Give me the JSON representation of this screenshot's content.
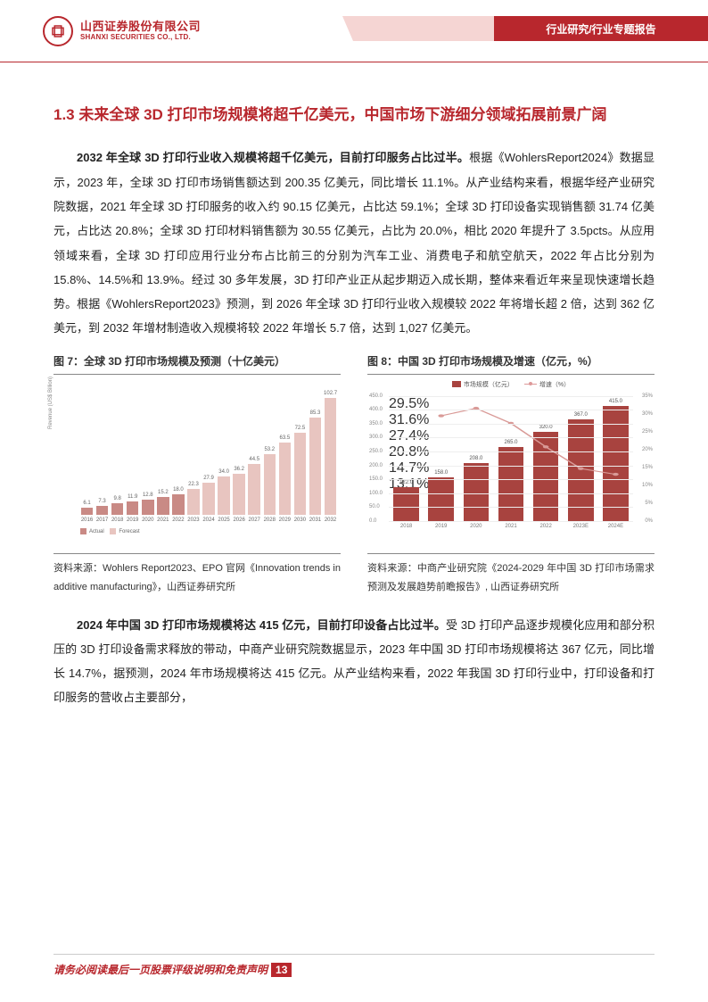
{
  "header": {
    "company_cn": "山西证券股份有限公司",
    "company_en": "SHANXI SECURITIES CO., LTD.",
    "ribbon": "行业研究/行业专题报告"
  },
  "section": {
    "title": "1.3 未来全球 3D 打印市场规模将超千亿美元，中国市场下游细分领域拓展前景广阔"
  },
  "para1": {
    "lead": "2032 年全球 3D 打印行业收入规模将超千亿美元，目前打印服务占比过半。",
    "rest": "根据《WohlersReport2024》数据显示，2023 年，全球 3D 打印市场销售额达到 200.35 亿美元，同比增长 11.1%。从产业结构来看，根据华经产业研究院数据，2021 年全球 3D 打印服务的收入约 90.15 亿美元，占比达 59.1%；全球 3D 打印设备实现销售额 31.74 亿美元，占比达 20.8%；全球 3D 打印材料销售额为 30.55 亿美元，占比为 20.0%，相比 2020 年提升了 3.5pcts。从应用领域来看，全球 3D 打印应用行业分布占比前三的分别为汽车工业、消费电子和航空航天，2022 年占比分别为 15.8%、14.5%和 13.9%。经过 30 多年发展，3D 打印产业正从起步期迈入成长期，整体来看近年来呈现快速增长趋势。根据《WohlersReport2023》预测，到 2026 年全球 3D 打印行业收入规模较 2022 年将增长超 2 倍，达到 362 亿美元，到 2032 年增材制造收入规模将较 2022 年增长 5.7 倍，达到 1,027 亿美元。"
  },
  "chart7": {
    "title": "图 7：全球 3D 打印市场规模及预测（十亿美元）",
    "ylabel": "Revenue (US$ Billion)",
    "ymax": 110,
    "actual_color": "#c98a85",
    "forecast_color": "#e8c5c0",
    "legend_actual": "Actual",
    "legend_forecast": "Forecast",
    "bars": [
      {
        "x": "2016",
        "v": 6.1,
        "forecast": false
      },
      {
        "x": "2017",
        "v": 7.3,
        "forecast": false
      },
      {
        "x": "2018",
        "v": 9.8,
        "forecast": false
      },
      {
        "x": "2019",
        "v": 11.9,
        "forecast": false
      },
      {
        "x": "2020",
        "v": 12.8,
        "forecast": false
      },
      {
        "x": "2021",
        "v": 15.2,
        "forecast": false
      },
      {
        "x": "2022",
        "v": 18.0,
        "forecast": false
      },
      {
        "x": "2023",
        "v": 22.3,
        "forecast": true
      },
      {
        "x": "2024",
        "v": 27.9,
        "forecast": true
      },
      {
        "x": "2025",
        "v": 34.0,
        "forecast": true
      },
      {
        "x": "2026",
        "v": 36.2,
        "forecast": true
      },
      {
        "x": "2027",
        "v": 44.5,
        "forecast": true
      },
      {
        "x": "2028",
        "v": 53.2,
        "forecast": true
      },
      {
        "x": "2029",
        "v": 63.5,
        "forecast": true
      },
      {
        "x": "2030",
        "v": 72.5,
        "forecast": true
      },
      {
        "x": "2031",
        "v": 85.3,
        "forecast": true
      },
      {
        "x": "2032",
        "v": 102.7,
        "forecast": true
      }
    ],
    "source": "资料来源：Wohlers Report2023、EPO 官网《Innovation trends in additive manufacturing》，山西证券研究所"
  },
  "chart8": {
    "title": "图 8：中国 3D 打印市场规模及增速（亿元，%）",
    "legend_bar": "市场规模（亿元）",
    "legend_line": "增速（%）",
    "left_max": 450,
    "right_max": 35,
    "left_ticks": [
      "0.0",
      "50.0",
      "100.0",
      "150.0",
      "200.0",
      "250.0",
      "300.0",
      "350.0",
      "400.0",
      "450.0"
    ],
    "right_ticks": [
      "0%",
      "5%",
      "10%",
      "15%",
      "20%",
      "25%",
      "30%",
      "35%"
    ],
    "bar_color": "#a8433f",
    "line_color": "#d99a97",
    "bars": [
      {
        "x": "2018",
        "v": 122.0,
        "g": null
      },
      {
        "x": "2019",
        "v": 158.0,
        "g": 29.5
      },
      {
        "x": "2020",
        "v": 208.0,
        "g": 31.6
      },
      {
        "x": "2021",
        "v": 265.0,
        "g": 27.4
      },
      {
        "x": "2022",
        "v": 320.0,
        "g": 20.8
      },
      {
        "x": "2023E",
        "v": 367.0,
        "g": 14.7
      },
      {
        "x": "2024E",
        "v": 415.0,
        "g": 13.1
      }
    ],
    "source": "资料来源：中商产业研究院《2024-2029 年中国 3D 打印市场需求预测及发展趋势前瞻报告》, 山西证券研究所"
  },
  "para2": {
    "lead": "2024 年中国 3D 打印市场规模将达 415 亿元，目前打印设备占比过半。",
    "rest": "受 3D 打印产品逐步规模化应用和部分积压的 3D 打印设备需求释放的带动，中商产业研究院数据显示，2023 年中国 3D 打印市场规模将达 367 亿元，同比增长 14.7%，据预测，2024 年市场规模将达 415 亿元。从产业结构来看，2022 年我国 3D 打印行业中，打印设备和打印服务的营收占主要部分，"
  },
  "footer": {
    "text": "请务必阅读最后一页股票评级说明和免责声明",
    "page": "13"
  }
}
